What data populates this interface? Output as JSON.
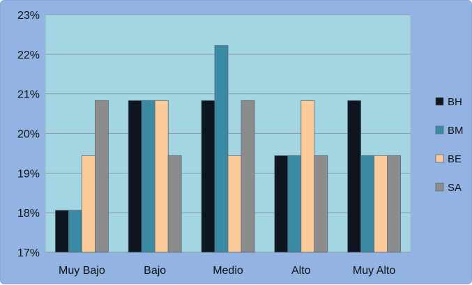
{
  "chart_data": {
    "type": "bar",
    "categories": [
      "Muy Bajo",
      "Bajo",
      "Medio",
      "Alto",
      "Muy Alto"
    ],
    "series": [
      {
        "name": "BH",
        "values": [
          18.06,
          20.83,
          20.83,
          19.44,
          20.83
        ]
      },
      {
        "name": "BM",
        "values": [
          18.06,
          20.83,
          22.22,
          19.44,
          19.44
        ]
      },
      {
        "name": "BE",
        "values": [
          19.44,
          20.83,
          19.44,
          20.83,
          19.44
        ]
      },
      {
        "name": "SA",
        "values": [
          20.83,
          19.44,
          20.83,
          19.44,
          19.44
        ]
      }
    ],
    "ylim": [
      17,
      23
    ],
    "yticks": [
      "17%",
      "18%",
      "19%",
      "20%",
      "21%",
      "22%",
      "23%"
    ],
    "grid": true,
    "legend_position": "right",
    "colors": {
      "BH": "#0d1520",
      "BM": "#3a8aa3",
      "BE": "#fccb9a",
      "SA": "#8c8c8c",
      "plot_background": "#a3d5e3",
      "chart_background": "#93b3e3"
    }
  }
}
